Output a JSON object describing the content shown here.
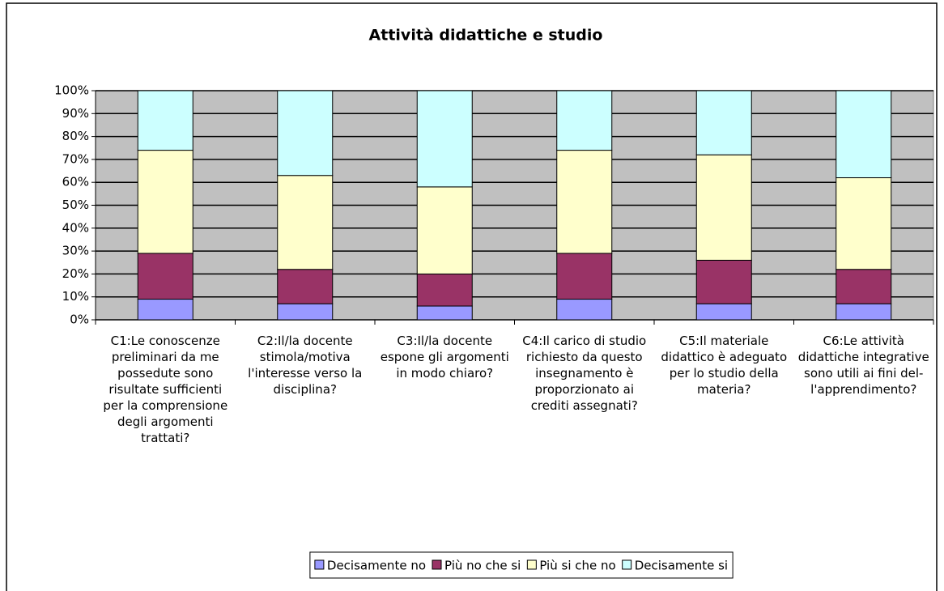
{
  "chart_data": {
    "type": "stacked_bar",
    "title": "Attività didattiche e studio",
    "categories": [
      "C1:Le conoscenze preliminari da me possedute sono risultate sufficienti per la comprensione degli argomenti trattati?",
      "C2:Il/la docente stimola/motiva l'interesse verso la disciplina?",
      "C3:Il/la docente espone gli argomenti in modo chiaro?",
      "C4:Il carico di studio richiesto da questo insegnamento è proporzionato ai crediti assegnati?",
      "C5:Il materiale didattico è adeguato per lo studio della materia?",
      "C6:Le attività didattiche integrative sono utili ai fini del-l'apprendimento?"
    ],
    "series": [
      {
        "name": "Decisamente no",
        "color": "#9999ff",
        "values": [
          9,
          7,
          6,
          9,
          7,
          7
        ]
      },
      {
        "name": "Più no che si",
        "color": "#993366",
        "values": [
          20,
          15,
          14,
          20,
          19,
          15
        ]
      },
      {
        "name": "Più si che no",
        "color": "#ffffcc",
        "values": [
          45,
          41,
          38,
          45,
          46,
          40
        ]
      },
      {
        "name": "Decisamente si",
        "color": "#ccffff",
        "values": [
          26,
          37,
          42,
          26,
          28,
          38
        ]
      }
    ],
    "ylim": [
      0,
      100
    ],
    "yticks": [
      {
        "value": 0,
        "label": "0%"
      },
      {
        "value": 10,
        "label": "10%"
      },
      {
        "value": 20,
        "label": "20%"
      },
      {
        "value": 30,
        "label": "30%"
      },
      {
        "value": 40,
        "label": "40%"
      },
      {
        "value": 50,
        "label": "50%"
      },
      {
        "value": 60,
        "label": "60%"
      },
      {
        "value": 70,
        "label": "70%"
      },
      {
        "value": 80,
        "label": "80%"
      },
      {
        "value": 90,
        "label": "90%"
      },
      {
        "value": 100,
        "label": "100%"
      }
    ],
    "grid": true,
    "legend": "bottom"
  }
}
